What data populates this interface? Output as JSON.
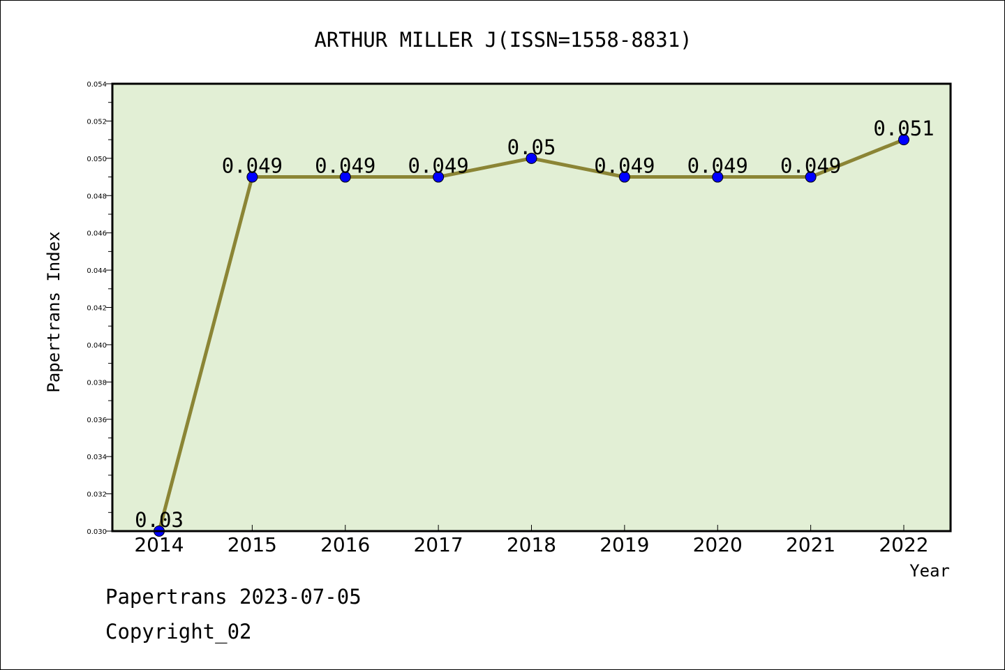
{
  "chart_data": {
    "type": "line",
    "title": "ARTHUR MILLER J(ISSN=1558-8831)",
    "xlabel": "Year",
    "ylabel": "Papertrans Index",
    "categories": [
      "2014",
      "2015",
      "2016",
      "2017",
      "2018",
      "2019",
      "2020",
      "2021",
      "2022"
    ],
    "values": [
      0.03,
      0.049,
      0.049,
      0.049,
      0.05,
      0.049,
      0.049,
      0.049,
      0.051
    ],
    "data_labels": [
      "0.03",
      "0.049",
      "0.049",
      "0.049",
      "0.05",
      "0.049",
      "0.049",
      "0.049",
      "0.051"
    ],
    "ylim": [
      0.03,
      0.054
    ],
    "yticks": [
      "0.030",
      "0.032",
      "0.034",
      "0.036",
      "0.038",
      "0.040",
      "0.042",
      "0.044",
      "0.046",
      "0.048",
      "0.050",
      "0.052",
      "0.054"
    ],
    "grid": false,
    "colors": {
      "plot_background": "#e2efd5",
      "line": "#8b8535",
      "marker": "#0000ff"
    }
  },
  "footer": {
    "line1": "Papertrans 2023-07-05",
    "line2": "Copyright_02"
  }
}
